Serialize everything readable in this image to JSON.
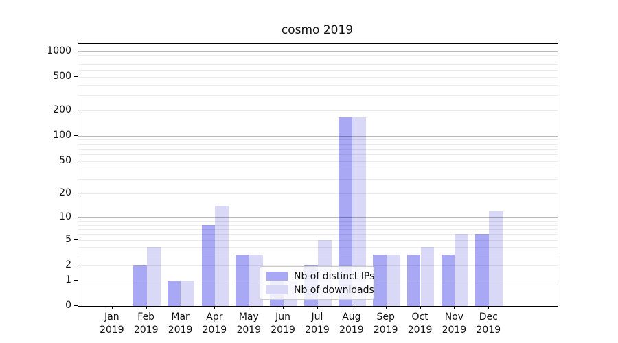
{
  "figure": {
    "title": "cosmo 2019"
  },
  "chart_data": {
    "type": "bar",
    "title": "cosmo 2019",
    "categories": [
      "Jan",
      "Feb",
      "Mar",
      "Apr",
      "May",
      "Jun",
      "Jul",
      "Aug",
      "Sep",
      "Oct",
      "Nov",
      "Dec"
    ],
    "year_label": "2019",
    "series": [
      {
        "name": "Nb of distinct IPs",
        "color": "#a8a8f4",
        "values": [
          0,
          2,
          1,
          8,
          3,
          1,
          2,
          164,
          3,
          3,
          3,
          6
        ]
      },
      {
        "name": "Nb of downloads",
        "color": "#d9d9f7",
        "values": [
          0,
          4,
          1,
          14,
          3,
          1,
          5,
          164,
          3,
          4,
          6,
          12
        ]
      }
    ],
    "y_axis": {
      "scale": "log10(1+x)",
      "tick_labels": [
        0,
        1,
        2,
        5,
        10,
        20,
        50,
        100,
        200,
        500,
        1000
      ],
      "major_gridlines": [
        1,
        10,
        100,
        1000
      ],
      "minor_gridlines": [
        2,
        3,
        4,
        5,
        6,
        7,
        8,
        9,
        20,
        30,
        40,
        50,
        60,
        70,
        80,
        90,
        200,
        300,
        400,
        500,
        600,
        700,
        800,
        900
      ],
      "top_transformed_value": 3.085,
      "ymin": 0
    },
    "x_axis": {
      "padding_slots": 1,
      "bar_width_fraction": 0.4
    },
    "legend": {
      "location": "lower center",
      "entries": [
        "Nb of distinct IPs",
        "Nb of downloads"
      ]
    },
    "grid": true
  }
}
